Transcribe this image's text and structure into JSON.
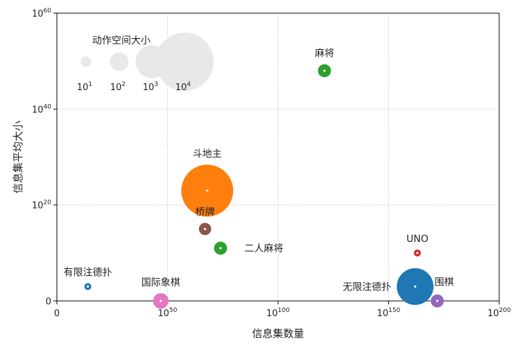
{
  "chart_data": {
    "type": "scatter",
    "xlabel": "信息集数量",
    "ylabel": "信息集平均大小",
    "x_scale": "log10",
    "y_scale": "log10",
    "xlim_exponent": [
      0,
      200
    ],
    "ylim_exponent": [
      0,
      60
    ],
    "x_ticks": [
      {
        "exp": 0,
        "label": "0"
      },
      {
        "exp": 50,
        "base": "10",
        "sup": "50"
      },
      {
        "exp": 100,
        "base": "10",
        "sup": "100"
      },
      {
        "exp": 150,
        "base": "10",
        "sup": "150"
      },
      {
        "exp": 200,
        "base": "10",
        "sup": "200"
      }
    ],
    "y_ticks": [
      {
        "exp": 0,
        "label": "0"
      },
      {
        "exp": 20,
        "base": "10",
        "sup": "20"
      },
      {
        "exp": 40,
        "base": "10",
        "sup": "40"
      },
      {
        "exp": 60,
        "base": "10",
        "sup": "60"
      }
    ],
    "grid": true,
    "grid_style": "dotted",
    "size_legend": {
      "title": "动作空间大小",
      "entries": [
        {
          "base": "10",
          "sup": "1",
          "action_space_exp": 1
        },
        {
          "base": "10",
          "sup": "2",
          "action_space_exp": 2
        },
        {
          "base": "10",
          "sup": "3",
          "action_space_exp": 3
        },
        {
          "base": "10",
          "sup": "4",
          "action_space_exp": 4
        }
      ],
      "color": "#e8e8e8"
    },
    "points": [
      {
        "name": "有限注德扑",
        "x_exp": 14,
        "y_exp": 3,
        "action_space_exp": 0.3,
        "color": "#1f77b4",
        "label_pos": "above"
      },
      {
        "name": "国际象棋",
        "x_exp": 47,
        "y_exp": 0,
        "action_space_exp": 1.7,
        "color": "#e377c2",
        "label_pos": "above"
      },
      {
        "name": "斗地主",
        "x_exp": 68,
        "y_exp": 23,
        "action_space_exp": 3.8,
        "color": "#ff7f0e",
        "label_pos": "above"
      },
      {
        "name": "桥牌",
        "x_exp": 67,
        "y_exp": 15,
        "action_space_exp": 1.3,
        "color": "#8c564b",
        "label_pos": "above"
      },
      {
        "name": "二人麻将",
        "x_exp": 74,
        "y_exp": 11,
        "action_space_exp": 1.4,
        "color": "#2ca02c",
        "label_pos": "right"
      },
      {
        "name": "麻将",
        "x_exp": 121,
        "y_exp": 48,
        "action_space_exp": 1.4,
        "color": "#2ca02c",
        "label_pos": "above"
      },
      {
        "name": "UNO",
        "x_exp": 163,
        "y_exp": 10,
        "action_space_exp": 0.3,
        "color": "#d62728",
        "label_pos": "above"
      },
      {
        "name": "无限注德扑",
        "x_exp": 162,
        "y_exp": 3,
        "action_space_exp": 3.2,
        "color": "#1f77b4",
        "label_pos": "left"
      },
      {
        "name": "围棋",
        "x_exp": 172,
        "y_exp": 0,
        "action_space_exp": 1.4,
        "color": "#9467bd",
        "label_pos": "above-right"
      }
    ]
  }
}
